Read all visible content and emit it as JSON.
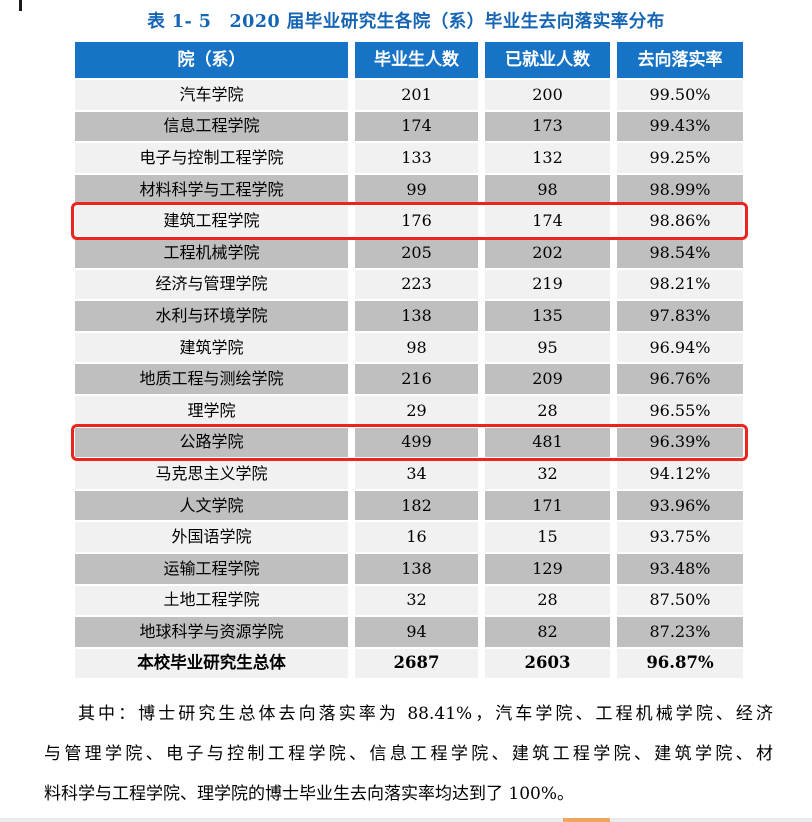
{
  "title": "表 1- 5　2020 届毕业研究生各院（系）毕业生去向落实率分布",
  "table": {
    "headers": [
      "院（系）",
      "毕业生人数",
      "已就业人数",
      "去向落实率"
    ],
    "rows": [
      {
        "college": "汽车学院",
        "graduates": "201",
        "employed": "200",
        "rate": "99.50%",
        "highlighted": false,
        "is_total": false
      },
      {
        "college": "信息工程学院",
        "graduates": "174",
        "employed": "173",
        "rate": "99.43%",
        "highlighted": false,
        "is_total": false
      },
      {
        "college": "电子与控制工程学院",
        "graduates": "133",
        "employed": "132",
        "rate": "99.25%",
        "highlighted": false,
        "is_total": false
      },
      {
        "college": "材料科学与工程学院",
        "graduates": "99",
        "employed": "98",
        "rate": "98.99%",
        "highlighted": false,
        "is_total": false
      },
      {
        "college": "建筑工程学院",
        "graduates": "176",
        "employed": "174",
        "rate": "98.86%",
        "highlighted": true,
        "is_total": false
      },
      {
        "college": "工程机械学院",
        "graduates": "205",
        "employed": "202",
        "rate": "98.54%",
        "highlighted": false,
        "is_total": false
      },
      {
        "college": "经济与管理学院",
        "graduates": "223",
        "employed": "219",
        "rate": "98.21%",
        "highlighted": false,
        "is_total": false
      },
      {
        "college": "水利与环境学院",
        "graduates": "138",
        "employed": "135",
        "rate": "97.83%",
        "highlighted": false,
        "is_total": false
      },
      {
        "college": "建筑学院",
        "graduates": "98",
        "employed": "95",
        "rate": "96.94%",
        "highlighted": false,
        "is_total": false
      },
      {
        "college": "地质工程与测绘学院",
        "graduates": "216",
        "employed": "209",
        "rate": "96.76%",
        "highlighted": false,
        "is_total": false
      },
      {
        "college": "理学院",
        "graduates": "29",
        "employed": "28",
        "rate": "96.55%",
        "highlighted": false,
        "is_total": false
      },
      {
        "college": "公路学院",
        "graduates": "499",
        "employed": "481",
        "rate": "96.39%",
        "highlighted": true,
        "is_total": false
      },
      {
        "college": "马克思主义学院",
        "graduates": "34",
        "employed": "32",
        "rate": "94.12%",
        "highlighted": false,
        "is_total": false
      },
      {
        "college": "人文学院",
        "graduates": "182",
        "employed": "171",
        "rate": "93.96%",
        "highlighted": false,
        "is_total": false
      },
      {
        "college": "外国语学院",
        "graduates": "16",
        "employed": "15",
        "rate": "93.75%",
        "highlighted": false,
        "is_total": false
      },
      {
        "college": "运输工程学院",
        "graduates": "138",
        "employed": "129",
        "rate": "93.48%",
        "highlighted": false,
        "is_total": false
      },
      {
        "college": "土地工程学院",
        "graduates": "32",
        "employed": "28",
        "rate": "87.50%",
        "highlighted": false,
        "is_total": false
      },
      {
        "college": "地球科学与资源学院",
        "graduates": "94",
        "employed": "82",
        "rate": "87.23%",
        "highlighted": false,
        "is_total": false
      },
      {
        "college": "本校毕业研究生总体",
        "graduates": "2687",
        "employed": "2603",
        "rate": "96.87%",
        "highlighted": false,
        "is_total": true
      }
    ]
  },
  "note_lines": [
    "其中：博士研究生总体去向落实率为 88.41%，汽车学院、工程机械学院、经济",
    "与管理学院、电子与控制工程学院、信息工程学院、建筑工程学院、建筑学院、材",
    "料科学与工程学院、理学院的博士毕业生去向落实率均达到了 100%。"
  ],
  "colors": {
    "title_blue": "#1565b4",
    "header_bg": "#1773c6",
    "row_light": "#f1f1f1",
    "row_gray": "#bfbfbf",
    "highlight_red": "#e8251e",
    "strip_bg": "#e9ebee",
    "strip_thumb": "#f0a55e"
  }
}
